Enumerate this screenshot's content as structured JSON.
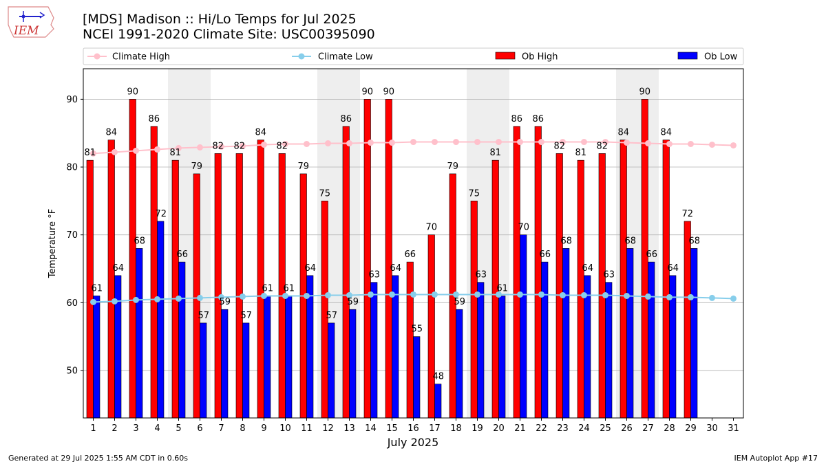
{
  "title_line1": "[MDS] Madison :: Hi/Lo Temps for Jul 2025",
  "title_line2": "NCEI 1991-2020 Climate Site: USC00395090",
  "logo_text": "IEM",
  "footer_left": "Generated at 29 Jul 2025 1:55 AM CDT in 0.60s",
  "footer_right": "IEM Autoplot App #17",
  "colors": {
    "ob_high": "#ff0000",
    "ob_low": "#0000ff",
    "climate_high": "#ffc0cb",
    "climate_low": "#87ceeb",
    "weekend_shade": "#eeeeee",
    "grid": "#b0b0b0"
  },
  "chart_data": {
    "type": "bar",
    "xlabel": "July 2025",
    "ylabel": "Temperature °F",
    "ylim": [
      43,
      94.5
    ],
    "yticks": [
      50,
      60,
      70,
      80,
      90
    ],
    "grid": "horizontal",
    "legend_position": "top",
    "categories": [
      1,
      2,
      3,
      4,
      5,
      6,
      7,
      8,
      9,
      10,
      11,
      12,
      13,
      14,
      15,
      16,
      17,
      18,
      19,
      20,
      21,
      22,
      23,
      24,
      25,
      26,
      27,
      28,
      29,
      30,
      31
    ],
    "shaded_days": [
      [
        5,
        6
      ],
      [
        12,
        13
      ],
      [
        19,
        20
      ],
      [
        26,
        27
      ]
    ],
    "legend": [
      "Climate High",
      "Climate Low",
      "Ob High",
      "Ob Low"
    ],
    "series": [
      {
        "name": "Ob High",
        "kind": "bar",
        "values": [
          81,
          84,
          90,
          86,
          81,
          79,
          82,
          82,
          84,
          82,
          79,
          75,
          86,
          90,
          90,
          66,
          70,
          79,
          75,
          81,
          86,
          86,
          82,
          81,
          82,
          84,
          90,
          84,
          72,
          null,
          null
        ]
      },
      {
        "name": "Ob Low",
        "kind": "bar",
        "values": [
          61,
          64,
          68,
          72,
          66,
          57,
          59,
          57,
          61,
          61,
          64,
          57,
          59,
          63,
          64,
          55,
          48,
          59,
          63,
          61,
          70,
          66,
          68,
          64,
          63,
          68,
          66,
          64,
          68,
          null,
          null
        ]
      },
      {
        "name": "Climate High",
        "kind": "line",
        "values": [
          82.0,
          82.2,
          82.4,
          82.6,
          82.8,
          82.9,
          83.0,
          83.1,
          83.3,
          83.4,
          83.4,
          83.5,
          83.5,
          83.6,
          83.6,
          83.7,
          83.7,
          83.7,
          83.7,
          83.7,
          83.7,
          83.7,
          83.7,
          83.7,
          83.7,
          83.6,
          83.5,
          83.4,
          83.4,
          83.3,
          83.2
        ]
      },
      {
        "name": "Climate Low",
        "kind": "line",
        "values": [
          60.1,
          60.2,
          60.4,
          60.5,
          60.6,
          60.7,
          60.8,
          60.9,
          61.0,
          61.0,
          61.0,
          61.1,
          61.1,
          61.2,
          61.2,
          61.2,
          61.2,
          61.2,
          61.2,
          61.2,
          61.2,
          61.2,
          61.1,
          61.1,
          61.1,
          61.0,
          60.9,
          60.8,
          60.8,
          60.7,
          60.6
        ]
      }
    ]
  }
}
